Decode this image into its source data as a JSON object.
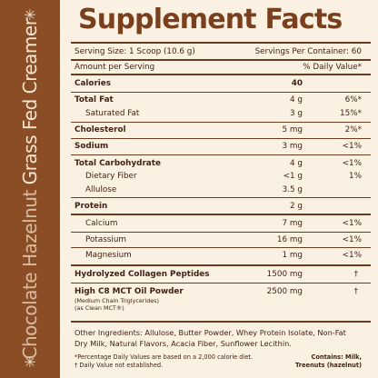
{
  "strip": {
    "flavor": "Chocolate Hazelnut",
    "product": "Grass Fed Creamer",
    "star_glyph": "✳"
  },
  "facts": {
    "title": "Supplement Facts",
    "serving_size": "Serving Size: 1 Scoop (10.6 g)",
    "servings_per_container": "Servings Per Container: 60",
    "amount_per_serving": "Amount per Serving",
    "daily_value_header": "% Daily Value*",
    "rows": [
      {
        "label": "Calories",
        "amount": "40",
        "dv": ""
      },
      {
        "label": "Total Fat",
        "amount": "4 g",
        "dv": "6%*"
      },
      {
        "label": "Saturated Fat",
        "amount": "3 g",
        "dv": "15%*"
      },
      {
        "label": "Cholesterol",
        "amount": "5 mg",
        "dv": "2%*"
      },
      {
        "label": "Sodium",
        "amount": "3 mg",
        "dv": "<1%"
      },
      {
        "label": "Total Carbohydrate",
        "amount": "4 g",
        "dv": "<1%"
      },
      {
        "label": "Dietary Fiber",
        "amount": "<1 g",
        "dv": "1%"
      },
      {
        "label": "Allulose",
        "amount": "3.5 g",
        "dv": ""
      },
      {
        "label": "Protein",
        "amount": "2 g",
        "dv": ""
      },
      {
        "label": "Calcium",
        "amount": "7 mg",
        "dv": "<1%"
      },
      {
        "label": "Potassium",
        "amount": "16 mg",
        "dv": "<1%"
      },
      {
        "label": "Magnesium",
        "amount": "1 mg",
        "dv": "<1%"
      },
      {
        "label": "Hydrolyzed Collagen Peptides",
        "amount": "1500 mg",
        "dv": "†"
      },
      {
        "label": "High C8 MCT Oil Powder",
        "amount": "2500 mg",
        "dv": "†"
      }
    ],
    "mct_note_1": "(Medium Chain Triglycerides)",
    "mct_note_2": "(as Clean MCT®)",
    "other_ingredients": "Other Ingredients: Allulose, Butter Powder, Whey Protein Isolate, Non-Fat Dry Milk, Natural Flavors, Acacia Fiber, Sunflower Lecithin.",
    "footnote_1": "*Percentage Daily Values are based on a 2,000 calorie diet.",
    "footnote_2": "† Daily Value not established.",
    "contains_1": "Contains: Milk,",
    "contains_2": "Treenuts (hazelnut)"
  }
}
